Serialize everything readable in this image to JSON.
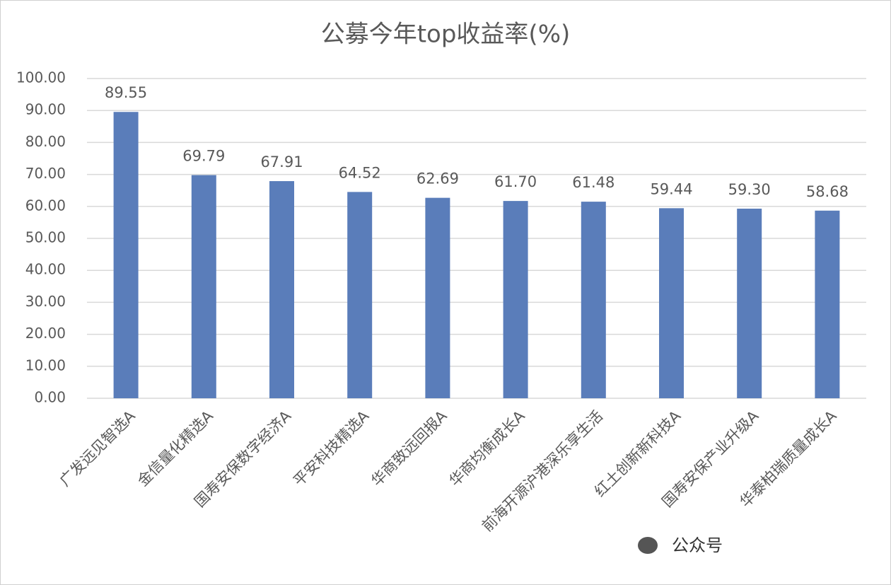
{
  "chart_data": {
    "type": "bar",
    "title": "公募今年top收益率(%)",
    "categories": [
      "广发远见智选A",
      "金信量化精选A",
      "国寿安保数字经济A",
      "平安科技精选A",
      "华商致远回报A",
      "华商均衡成长A",
      "前海开源沪港深乐享生活",
      "红土创新新科技A",
      "国寿安保产业升级A",
      "华泰柏瑞质量成长A"
    ],
    "values": [
      89.55,
      69.79,
      67.91,
      64.52,
      62.69,
      61.7,
      61.48,
      59.44,
      59.3,
      58.68
    ],
    "value_labels": [
      "89.55",
      "69.79",
      "67.91",
      "64.52",
      "62.69",
      "61.70",
      "61.48",
      "59.44",
      "59.30",
      "58.68"
    ],
    "color": "#5a7dba",
    "ylim": [
      0,
      100
    ],
    "yticks": [
      {
        "value": 0,
        "label": "0.00"
      },
      {
        "value": 10,
        "label": "10.00"
      },
      {
        "value": 20,
        "label": "20.00"
      },
      {
        "value": 30,
        "label": "30.00"
      },
      {
        "value": 40,
        "label": "40.00"
      },
      {
        "value": 50,
        "label": "50.00"
      },
      {
        "value": 60,
        "label": "60.00"
      },
      {
        "value": 70,
        "label": "70.00"
      },
      {
        "value": 80,
        "label": "80.00"
      },
      {
        "value": 90,
        "label": "90.00"
      },
      {
        "value": 100,
        "label": "100.00"
      }
    ],
    "grid": true,
    "watermark": "公众号"
  }
}
